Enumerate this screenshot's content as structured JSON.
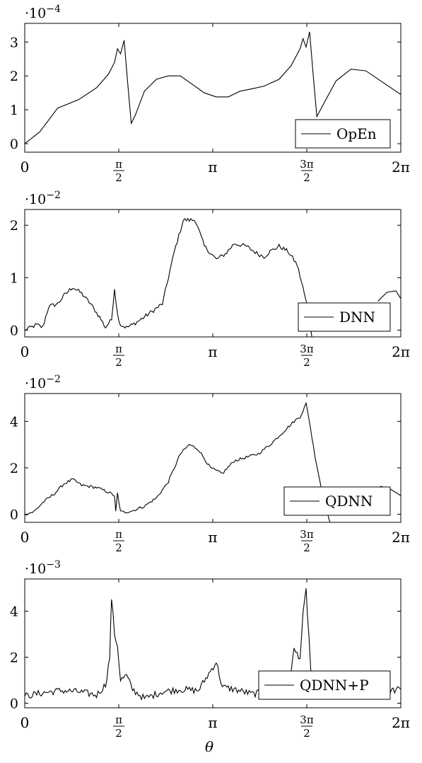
{
  "xlabel": "θ",
  "chart_data": [
    {
      "type": "line",
      "exponent_base": "·10",
      "exponent_power": "−4",
      "xlim": [
        0,
        6.2832
      ],
      "ylim": [
        -0.25,
        3.55
      ],
      "yticks": [
        {
          "v": 0,
          "label": "0"
        },
        {
          "v": 1,
          "label": "1"
        },
        {
          "v": 2,
          "label": "2"
        },
        {
          "v": 3,
          "label": "3"
        }
      ],
      "xticks": [
        {
          "v": 0,
          "kind": "plain",
          "label": "0"
        },
        {
          "v": 1.5708,
          "kind": "frac",
          "num": "π",
          "den": "2"
        },
        {
          "v": 3.1416,
          "kind": "plain",
          "label": "π"
        },
        {
          "v": 4.7124,
          "kind": "frac",
          "num": "3π",
          "den": "2"
        },
        {
          "v": 6.2832,
          "kind": "plain",
          "label": "2π"
        }
      ],
      "series": [
        {
          "name": "OpEn",
          "color": "#000000",
          "noise": 0,
          "points": [
            [
              0,
              0
            ],
            [
              0.25,
              0.35
            ],
            [
              0.55,
              1.05
            ],
            [
              0.9,
              1.3
            ],
            [
              1.2,
              1.65
            ],
            [
              1.4,
              2.05
            ],
            [
              1.5,
              2.4
            ],
            [
              1.55,
              2.8
            ],
            [
              1.6,
              2.65
            ],
            [
              1.66,
              3.05
            ],
            [
              1.72,
              1.8
            ],
            [
              1.78,
              0.6
            ],
            [
              1.85,
              0.85
            ],
            [
              2.0,
              1.55
            ],
            [
              2.2,
              1.9
            ],
            [
              2.4,
              2.0
            ],
            [
              2.6,
              2.0
            ],
            [
              2.8,
              1.75
            ],
            [
              3.0,
              1.5
            ],
            [
              3.2,
              1.38
            ],
            [
              3.4,
              1.38
            ],
            [
              3.6,
              1.55
            ],
            [
              3.8,
              1.62
            ],
            [
              4.0,
              1.7
            ],
            [
              4.25,
              1.9
            ],
            [
              4.45,
              2.3
            ],
            [
              4.6,
              2.8
            ],
            [
              4.65,
              3.1
            ],
            [
              4.7,
              2.85
            ],
            [
              4.76,
              3.3
            ],
            [
              4.83,
              1.8
            ],
            [
              4.88,
              0.8
            ],
            [
              5.0,
              1.2
            ],
            [
              5.2,
              1.85
            ],
            [
              5.45,
              2.2
            ],
            [
              5.7,
              2.15
            ],
            [
              5.95,
              1.85
            ],
            [
              6.2832,
              1.45
            ]
          ]
        }
      ]
    },
    {
      "type": "line",
      "exponent_base": "·10",
      "exponent_power": "−2",
      "xlim": [
        0,
        6.2832
      ],
      "ylim": [
        -0.13,
        2.3
      ],
      "yticks": [
        {
          "v": 0,
          "label": "0"
        },
        {
          "v": 1,
          "label": "1"
        },
        {
          "v": 2,
          "label": "2"
        }
      ],
      "xticks": [
        {
          "v": 0,
          "kind": "plain",
          "label": "0"
        },
        {
          "v": 1.5708,
          "kind": "frac",
          "num": "π",
          "den": "2"
        },
        {
          "v": 3.1416,
          "kind": "plain",
          "label": "π"
        },
        {
          "v": 4.7124,
          "kind": "frac",
          "num": "3π",
          "den": "2"
        },
        {
          "v": 6.2832,
          "kind": "plain",
          "label": "2π"
        }
      ],
      "series": [
        {
          "name": "DNN",
          "color": "#000000",
          "noise": 0.08,
          "points": [
            [
              0,
              0
            ],
            [
              0.1,
              0.05
            ],
            [
              0.2,
              0.1
            ],
            [
              0.3,
              0.05
            ],
            [
              0.4,
              0.45
            ],
            [
              0.55,
              0.5
            ],
            [
              0.65,
              0.65
            ],
            [
              0.8,
              0.82
            ],
            [
              0.95,
              0.7
            ],
            [
              1.1,
              0.5
            ],
            [
              1.25,
              0.25
            ],
            [
              1.35,
              0.05
            ],
            [
              1.45,
              0.2
            ],
            [
              1.5,
              0.8
            ],
            [
              1.55,
              0.3
            ],
            [
              1.6,
              0.1
            ],
            [
              1.7,
              0.05
            ],
            [
              1.8,
              0.1
            ],
            [
              2.0,
              0.25
            ],
            [
              2.3,
              0.5
            ],
            [
              2.5,
              1.5
            ],
            [
              2.65,
              2.1
            ],
            [
              2.85,
              2.1
            ],
            [
              3.0,
              1.6
            ],
            [
              3.2,
              1.35
            ],
            [
              3.35,
              1.45
            ],
            [
              3.5,
              1.65
            ],
            [
              3.7,
              1.6
            ],
            [
              3.9,
              1.45
            ],
            [
              4.0,
              1.4
            ],
            [
              4.1,
              1.5
            ],
            [
              4.25,
              1.6
            ],
            [
              4.4,
              1.5
            ],
            [
              4.55,
              1.25
            ],
            [
              4.65,
              0.8
            ],
            [
              4.75,
              0.3
            ],
            [
              4.8,
              -0.15
            ],
            [
              6.2832,
              -0.15
            ]
          ]
        },
        {
          "name": "",
          "color": "#000000",
          "noise": 0,
          "points": [
            [
              5.9,
              0.55
            ],
            [
              6.05,
              0.72
            ],
            [
              6.2,
              0.75
            ],
            [
              6.2832,
              0.6
            ]
          ]
        }
      ]
    },
    {
      "type": "line",
      "exponent_base": "·10",
      "exponent_power": "−2",
      "xlim": [
        0,
        6.2832
      ],
      "ylim": [
        -0.35,
        5.2
      ],
      "yticks": [
        {
          "v": 0,
          "label": "0"
        },
        {
          "v": 2,
          "label": "2"
        },
        {
          "v": 4,
          "label": "4"
        }
      ],
      "xticks": [
        {
          "v": 0,
          "kind": "plain",
          "label": "0"
        },
        {
          "v": 1.5708,
          "kind": "frac",
          "num": "π",
          "den": "2"
        },
        {
          "v": 3.1416,
          "kind": "plain",
          "label": "π"
        },
        {
          "v": 4.7124,
          "kind": "frac",
          "num": "3π",
          "den": "2"
        },
        {
          "v": 6.2832,
          "kind": "plain",
          "label": "2π"
        }
      ],
      "series": [
        {
          "name": "QDNN",
          "color": "#000000",
          "noise": 0.12,
          "points": [
            [
              0,
              0
            ],
            [
              0.15,
              0.1
            ],
            [
              0.3,
              0.5
            ],
            [
              0.5,
              0.9
            ],
            [
              0.65,
              1.3
            ],
            [
              0.8,
              1.5
            ],
            [
              0.95,
              1.25
            ],
            [
              1.2,
              1.15
            ],
            [
              1.4,
              0.95
            ],
            [
              1.5,
              0.8
            ],
            [
              1.52,
              0.1
            ],
            [
              1.55,
              0.9
            ],
            [
              1.6,
              0.1
            ],
            [
              1.7,
              0.1
            ],
            [
              1.8,
              0.15
            ],
            [
              2.0,
              0.35
            ],
            [
              2.2,
              0.7
            ],
            [
              2.4,
              1.4
            ],
            [
              2.6,
              2.6
            ],
            [
              2.75,
              3.0
            ],
            [
              2.9,
              2.8
            ],
            [
              3.1,
              2.0
            ],
            [
              3.3,
              1.75
            ],
            [
              3.5,
              2.3
            ],
            [
              3.7,
              2.45
            ],
            [
              3.9,
              2.6
            ],
            [
              4.1,
              3.0
            ],
            [
              4.3,
              3.5
            ],
            [
              4.5,
              4.0
            ],
            [
              4.6,
              4.2
            ],
            [
              4.7,
              4.75
            ],
            [
              4.75,
              4.1
            ],
            [
              4.85,
              2.5
            ],
            [
              4.95,
              1.2
            ],
            [
              5.1,
              -0.35
            ],
            [
              6.2832,
              -0.35
            ]
          ]
        },
        {
          "name": "",
          "color": "#000000",
          "noise": 0,
          "points": [
            [
              5.8,
              1.0
            ],
            [
              5.95,
              1.2
            ],
            [
              6.1,
              1.1
            ],
            [
              6.2832,
              0.8
            ]
          ]
        }
      ]
    },
    {
      "type": "line",
      "exponent_base": "·10",
      "exponent_power": "−3",
      "xlim": [
        0,
        6.2832
      ],
      "ylim": [
        -0.2,
        5.4
      ],
      "yticks": [
        {
          "v": 0,
          "label": "0"
        },
        {
          "v": 2,
          "label": "2"
        },
        {
          "v": 4,
          "label": "4"
        }
      ],
      "xticks": [
        {
          "v": 0,
          "kind": "plain",
          "label": "0"
        },
        {
          "v": 1.5708,
          "kind": "frac",
          "num": "π",
          "den": "2"
        },
        {
          "v": 3.1416,
          "kind": "plain",
          "label": "π"
        },
        {
          "v": 4.7124,
          "kind": "frac",
          "num": "3π",
          "den": "2"
        },
        {
          "v": 6.2832,
          "kind": "plain",
          "label": "2π"
        }
      ],
      "series": [
        {
          "name": "QDNN+P",
          "color": "#000000",
          "noise": 0.3,
          "points": [
            [
              0,
              0.3
            ],
            [
              0.3,
              0.45
            ],
            [
              0.6,
              0.55
            ],
            [
              0.9,
              0.5
            ],
            [
              1.2,
              0.35
            ],
            [
              1.35,
              0.8
            ],
            [
              1.42,
              2.0
            ],
            [
              1.45,
              4.6
            ],
            [
              1.5,
              3.0
            ],
            [
              1.55,
              2.5
            ],
            [
              1.6,
              1.0
            ],
            [
              1.7,
              1.2
            ],
            [
              1.8,
              0.6
            ],
            [
              2.0,
              0.2
            ],
            [
              2.3,
              0.5
            ],
            [
              2.6,
              0.6
            ],
            [
              2.9,
              0.55
            ],
            [
              3.2,
              1.8
            ],
            [
              3.3,
              0.7
            ],
            [
              3.5,
              0.6
            ],
            [
              3.8,
              0.4
            ],
            [
              4.1,
              0.5
            ],
            [
              4.4,
              0.6
            ],
            [
              4.5,
              2.3
            ],
            [
              4.6,
              2.0
            ],
            [
              4.65,
              3.8
            ],
            [
              4.7,
              4.9
            ],
            [
              4.75,
              2.8
            ],
            [
              4.8,
              0.5
            ],
            [
              5.1,
              0.6
            ],
            [
              5.4,
              0.5
            ],
            [
              5.7,
              0.8
            ],
            [
              6.0,
              0.5
            ],
            [
              6.2832,
              0.6
            ]
          ]
        }
      ]
    }
  ]
}
